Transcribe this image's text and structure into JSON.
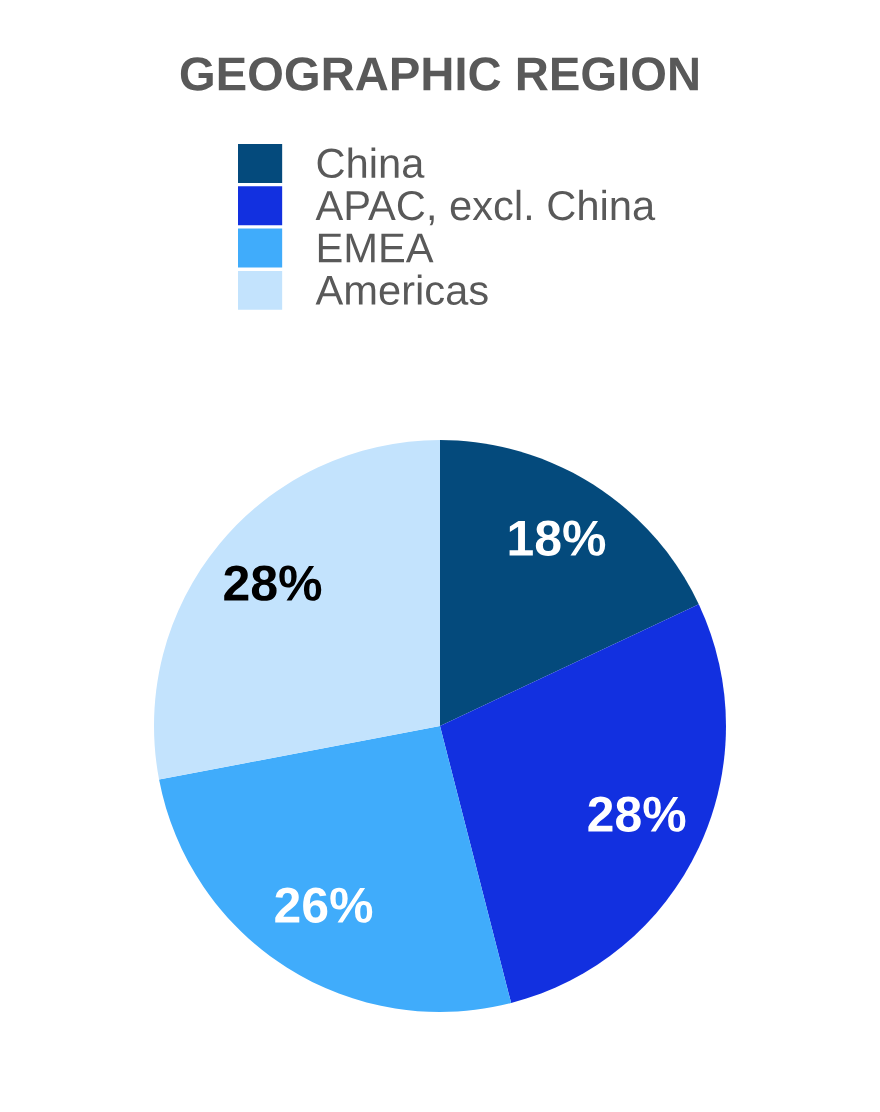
{
  "chart_data": {
    "type": "pie",
    "title": "GEOGRAPHIC REGION",
    "categories": [
      "China",
      "APAC, excl. China",
      "EMEA",
      "Americas"
    ],
    "values": [
      18,
      28,
      26,
      28
    ],
    "colors": [
      "#044a7c",
      "#1230e0",
      "#40acfb",
      "#c3e3fd"
    ],
    "value_labels": [
      "18%",
      "28%",
      "26%",
      "28%"
    ],
    "legend": "top"
  }
}
